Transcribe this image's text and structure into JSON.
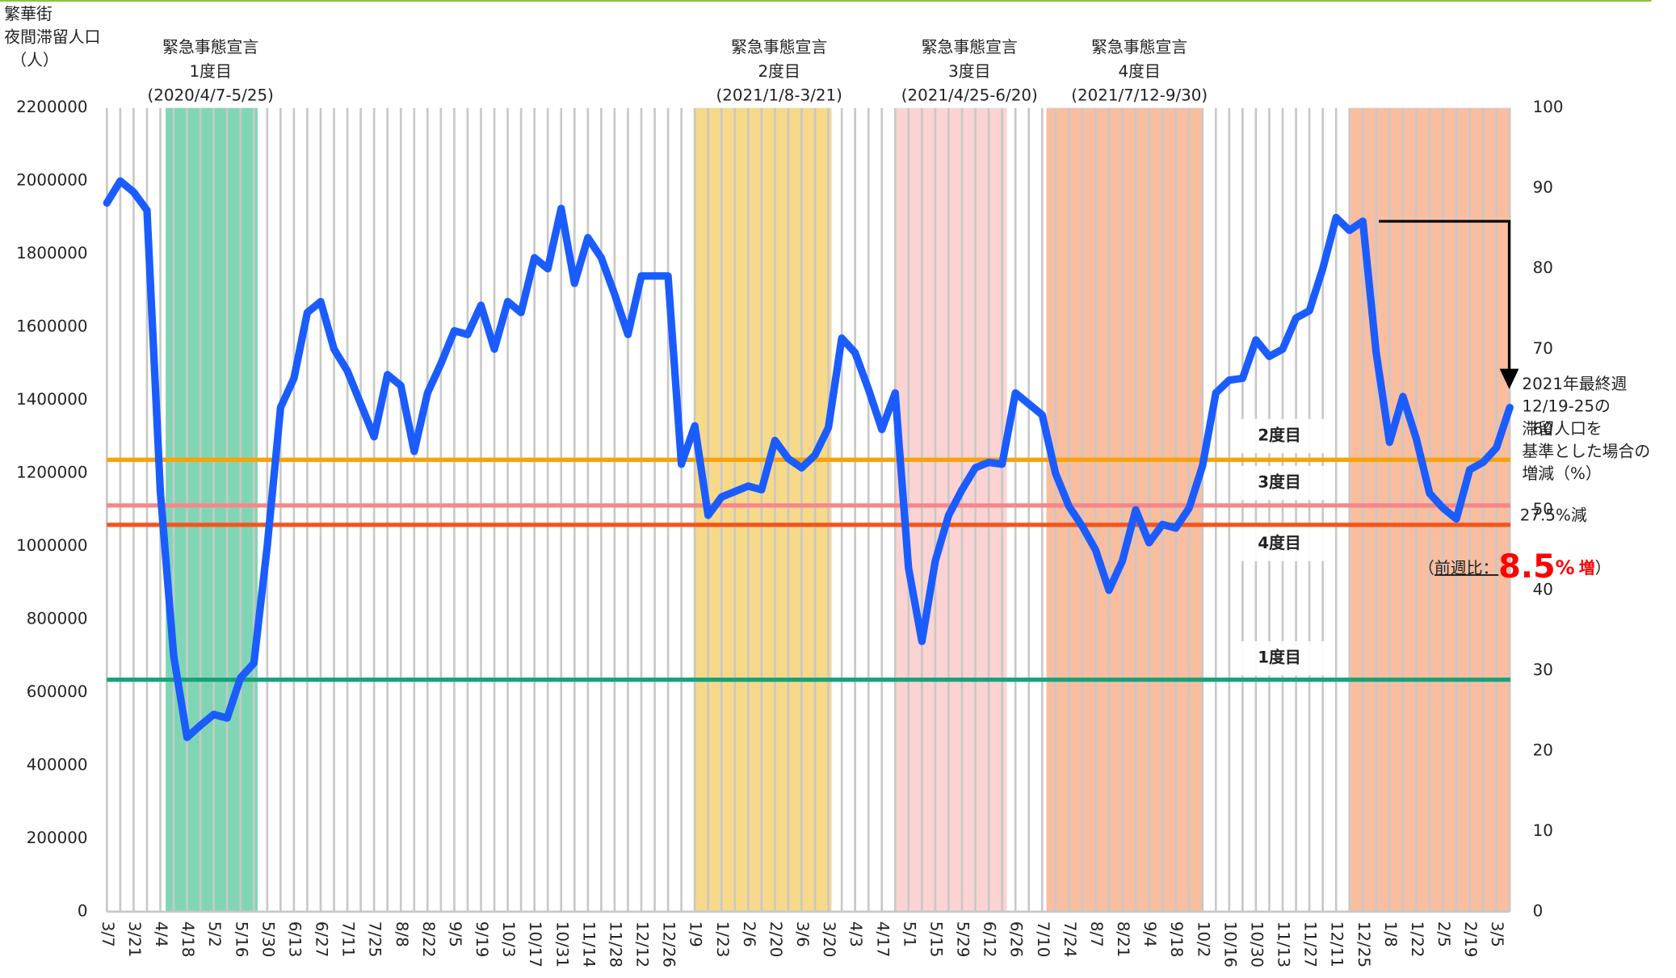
{
  "chart_data": {
    "type": "line",
    "y_label": [
      "繁華街",
      "夜間滞留人口",
      "（人）"
    ],
    "categories": [
      "3/7",
      null,
      "3/21",
      null,
      "4/4",
      null,
      "4/18",
      null,
      "5/2",
      null,
      "5/16",
      null,
      "5/30",
      null,
      "6/13",
      null,
      "6/27",
      null,
      "7/11",
      null,
      "7/25",
      null,
      "8/8",
      null,
      "8/22",
      null,
      "9/5",
      null,
      "9/19",
      null,
      "10/3",
      null,
      "10/17",
      null,
      "10/31",
      null,
      "11/14",
      null,
      "11/28",
      null,
      "12/12",
      null,
      "12/26",
      null,
      "1/9",
      null,
      "1/23",
      null,
      "2/6",
      null,
      "2/20",
      null,
      "3/6",
      null,
      "3/20",
      null,
      "4/3",
      null,
      "4/17",
      null,
      "5/1",
      null,
      "5/15",
      null,
      "5/29",
      null,
      "6/12",
      null,
      "6/26",
      null,
      "7/10",
      null,
      "7/24",
      null,
      "8/7",
      null,
      "8/21",
      null,
      "9/4",
      null,
      "9/18",
      null,
      "10/2",
      null,
      "10/16",
      null,
      "10/30",
      null,
      "11/13",
      null,
      "11/27",
      null,
      "12/11",
      null,
      "12/25",
      null,
      "1/8",
      null,
      "1/22",
      null,
      "2/5",
      null,
      "2/19",
      null,
      "3/5",
      null
    ],
    "series": [
      {
        "name": "繁華街夜間滞留人口",
        "color": "#1a5cff",
        "values": [
          1940000,
          2000000,
          1970000,
          1920000,
          1150000,
          700000,
          477000,
          510000,
          540000,
          530000,
          640000,
          680000,
          1000000,
          1380000,
          1460000,
          1640000,
          1670000,
          1540000,
          1480000,
          1390000,
          1300000,
          1470000,
          1440000,
          1260000,
          1420000,
          1500000,
          1590000,
          1580000,
          1660000,
          1540000,
          1670000,
          1640000,
          1790000,
          1760000,
          1925000,
          1720000,
          1845000,
          1790000,
          1690000,
          1580000,
          1740000,
          1740000,
          1740000,
          1225000,
          1330000,
          1085000,
          1135000,
          1150000,
          1165000,
          1155000,
          1290000,
          1240000,
          1215000,
          1250000,
          1325000,
          1570000,
          1530000,
          1430000,
          1320000,
          1420000,
          940000,
          740000,
          960000,
          1085000,
          1155000,
          1215000,
          1230000,
          1225000,
          1420000,
          1390000,
          1360000,
          1200000,
          1110000,
          1055000,
          990000,
          880000,
          960000,
          1100000,
          1010000,
          1060000,
          1050000,
          1105000,
          1220000,
          1420000,
          1455000,
          1460000,
          1565000,
          1520000,
          1540000,
          1625000,
          1645000,
          1760000,
          1900000,
          1865000,
          1890000,
          1530000,
          1285000,
          1410000,
          1295000,
          1145000,
          1105000,
          1075000,
          1210000,
          1230000,
          1270000,
          1380000
        ]
      }
    ],
    "ylim": [
      0,
      2200000
    ],
    "yticks": [
      0,
      200000,
      400000,
      600000,
      800000,
      1000000,
      1200000,
      1400000,
      1600000,
      1800000,
      2000000,
      2200000
    ],
    "y2lim": [
      0,
      100
    ],
    "y2ticks": [
      0,
      10,
      20,
      30,
      40,
      50,
      60,
      70,
      80,
      90,
      100
    ],
    "grid": true,
    "reference_lines": [
      {
        "label": "2度目",
        "value": 1237000,
        "color": "#f5a30f"
      },
      {
        "label": "3度目",
        "value": 1112000,
        "color": "#f4878a"
      },
      {
        "label": "4度目",
        "value": 1059000,
        "color": "#f5541a"
      },
      {
        "label": "1度目",
        "value": 635000,
        "color": "#17a37a"
      }
    ],
    "bands": [
      {
        "lines": [
          "緊急事態宣言",
          "1度目",
          "(2020/4/7-5/25)"
        ],
        "color": "#80d6b4"
      },
      {
        "lines": [
          "緊急事態宣言",
          "2度目",
          "(2021/1/8-3/21)"
        ],
        "color": "#f7d98a"
      },
      {
        "lines": [
          "緊急事態宣言",
          "3度目",
          "(2021/4/25-6/20)"
        ],
        "color": "#fcd3d3"
      },
      {
        "lines": [
          "緊急事態宣言",
          "4度目",
          "(2021/7/12-9/30)"
        ],
        "color": "#f9bda0"
      }
    ],
    "note": {
      "lines": [
        "2021年最終週",
        "12/19-25の",
        "滞留人口を",
        "基準とした場合の",
        "増減（%）"
      ],
      "change": "27.5%減",
      "week": {
        "open": "（",
        "label": "前週比：",
        "number": "8.5",
        "unit": "%",
        "word": "増",
        "close": "）"
      }
    }
  }
}
